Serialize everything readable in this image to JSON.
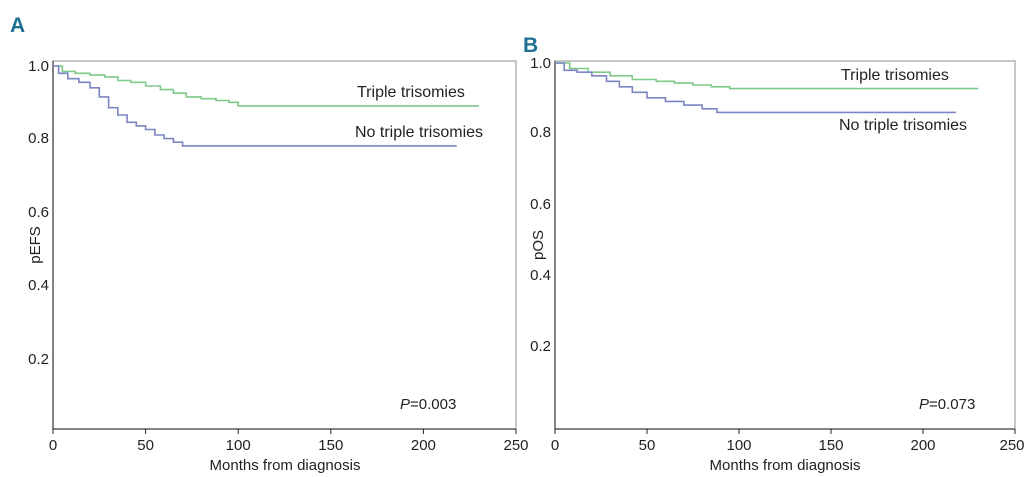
{
  "chart_data": [
    {
      "type": "line",
      "panel": "A",
      "title": "",
      "xlabel": "Months from diagnosis",
      "ylabel": "pEFS",
      "xlim": [
        0,
        250
      ],
      "ylim": [
        0,
        1.0
      ],
      "x_ticks": [
        "0",
        "50",
        "100",
        "150",
        "200",
        "250"
      ],
      "y_ticks": [
        "1.0",
        "0.8",
        "0.6",
        "0.4",
        "0.2"
      ],
      "grid": false,
      "p_value": {
        "label": "P",
        "value": "=0.003"
      },
      "series": [
        {
          "name": "Triple trisomies",
          "color": "#7fc98a",
          "points": [
            [
              0,
              1.0
            ],
            [
              5,
              0.985
            ],
            [
              12,
              0.98
            ],
            [
              20,
              0.975
            ],
            [
              28,
              0.97
            ],
            [
              35,
              0.96
            ],
            [
              42,
              0.955
            ],
            [
              50,
              0.945
            ],
            [
              58,
              0.935
            ],
            [
              65,
              0.925
            ],
            [
              72,
              0.915
            ],
            [
              80,
              0.91
            ],
            [
              88,
              0.905
            ],
            [
              95,
              0.9
            ],
            [
              100,
              0.89
            ],
            [
              150,
              0.89
            ],
            [
              200,
              0.89
            ],
            [
              230,
              0.89
            ]
          ]
        },
        {
          "name": "No triple trisomies",
          "color": "#7b85c1",
          "points": [
            [
              0,
              1.0
            ],
            [
              3,
              0.98
            ],
            [
              8,
              0.965
            ],
            [
              14,
              0.955
            ],
            [
              20,
              0.94
            ],
            [
              25,
              0.915
            ],
            [
              30,
              0.885
            ],
            [
              35,
              0.865
            ],
            [
              40,
              0.845
            ],
            [
              45,
              0.835
            ],
            [
              50,
              0.825
            ],
            [
              55,
              0.81
            ],
            [
              60,
              0.8
            ],
            [
              65,
              0.79
            ],
            [
              70,
              0.78
            ],
            [
              100,
              0.78
            ],
            [
              150,
              0.78
            ],
            [
              200,
              0.78
            ],
            [
              218,
              0.78
            ]
          ]
        }
      ]
    },
    {
      "type": "line",
      "panel": "B",
      "title": "",
      "xlabel": "Months from diagnosis",
      "ylabel": "pOS",
      "xlim": [
        0,
        250
      ],
      "ylim": [
        0,
        1.0
      ],
      "x_ticks": [
        "0",
        "50",
        "100",
        "150",
        "200",
        "250"
      ],
      "y_ticks": [
        "1.0",
        "0.8",
        "0.6",
        "0.4",
        "0.2"
      ],
      "grid": false,
      "p_value": {
        "label": "P",
        "value": "=0.073"
      },
      "series": [
        {
          "name": "Triple trisomies",
          "color": "#7fc98a",
          "points": [
            [
              0,
              1.0
            ],
            [
              8,
              0.985
            ],
            [
              18,
              0.975
            ],
            [
              30,
              0.965
            ],
            [
              42,
              0.955
            ],
            [
              55,
              0.95
            ],
            [
              65,
              0.945
            ],
            [
              75,
              0.94
            ],
            [
              85,
              0.935
            ],
            [
              95,
              0.93
            ],
            [
              150,
              0.93
            ],
            [
              200,
              0.93
            ],
            [
              230,
              0.93
            ]
          ]
        },
        {
          "name": "No triple trisomies",
          "color": "#7b85c1",
          "points": [
            [
              0,
              1.0
            ],
            [
              5,
              0.98
            ],
            [
              12,
              0.975
            ],
            [
              20,
              0.965
            ],
            [
              28,
              0.95
            ],
            [
              35,
              0.935
            ],
            [
              42,
              0.92
            ],
            [
              50,
              0.905
            ],
            [
              60,
              0.895
            ],
            [
              70,
              0.885
            ],
            [
              80,
              0.875
            ],
            [
              88,
              0.865
            ],
            [
              100,
              0.865
            ],
            [
              150,
              0.865
            ],
            [
              200,
              0.865
            ],
            [
              218,
              0.865
            ]
          ]
        }
      ]
    }
  ]
}
